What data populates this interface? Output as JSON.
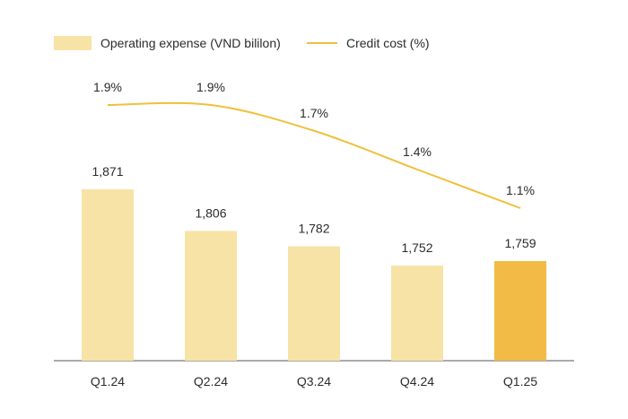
{
  "chart_data": {
    "type": "bar",
    "categories": [
      "Q1.24",
      "Q2.24",
      "Q3.24",
      "Q4.24",
      "Q1.25"
    ],
    "series": [
      {
        "name": "Operating expense (VND bililon)",
        "type": "bar",
        "values": [
          1871,
          1806,
          1782,
          1752,
          1759
        ],
        "labels": [
          "1,871",
          "1,806",
          "1,782",
          "1,752",
          "1,759"
        ]
      },
      {
        "name": "Credit cost (%)",
        "type": "line",
        "values": [
          1.9,
          1.9,
          1.7,
          1.4,
          1.1
        ],
        "labels": [
          "1.9%",
          "1.9%",
          "1.7%",
          "1.4%",
          "1.1%"
        ]
      }
    ],
    "legend_position": "top-left",
    "grid": false,
    "colors": {
      "bar": "#f8e3a6",
      "bar_highlight": "#f1bb45",
      "line": "#f0c03c",
      "axis": "#555555",
      "text": "#2b2b2b"
    },
    "highlight_category": "Q1.25"
  }
}
